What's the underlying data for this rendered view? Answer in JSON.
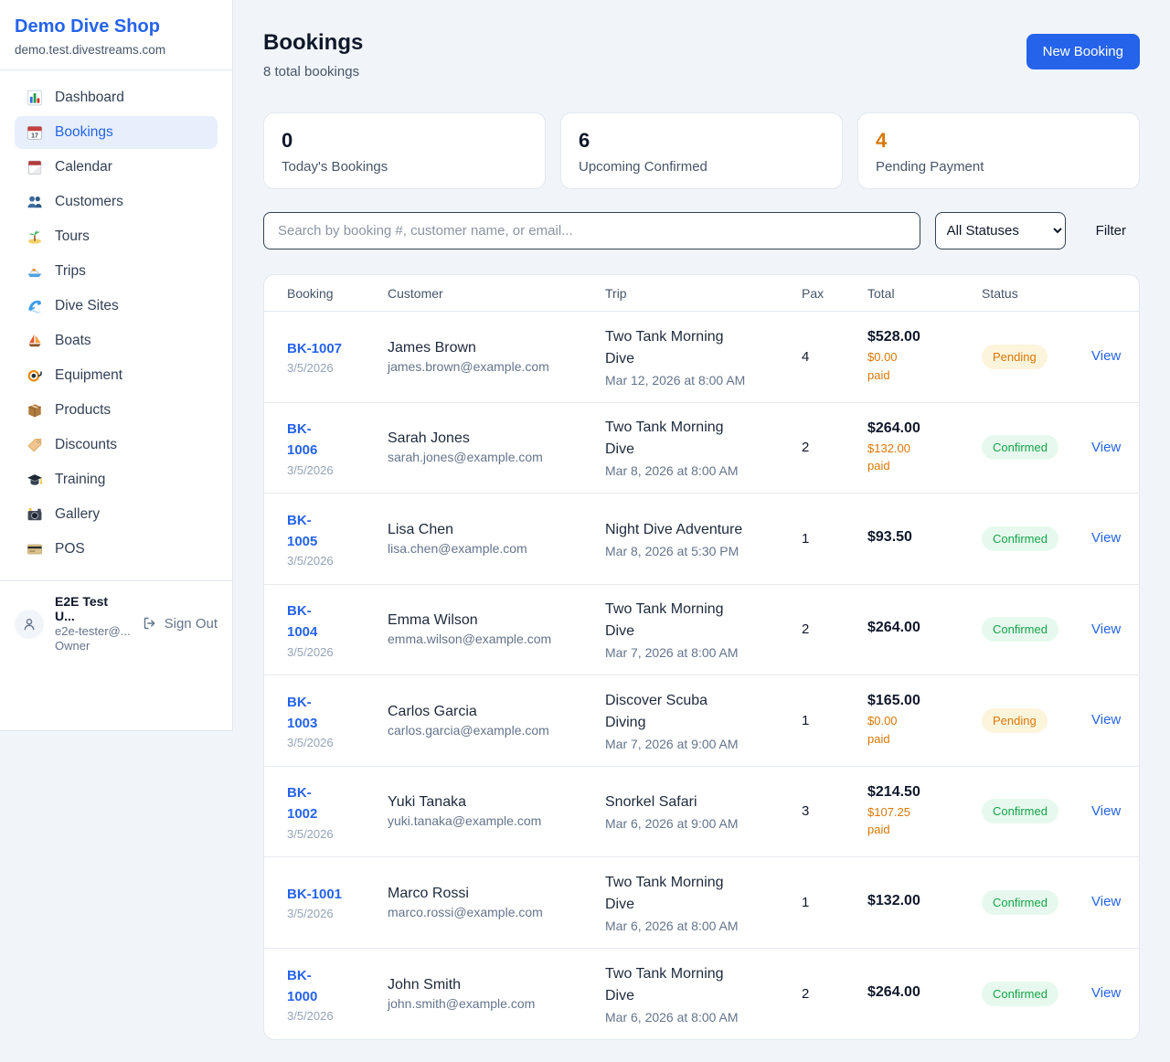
{
  "colors": {
    "accent": "#2563eb",
    "pending_orange": "#d97706",
    "confirmed_green": "#16a34a",
    "pending_badge_bg": "#fdf4dc",
    "confirmed_badge_bg": "#e7f9ee"
  },
  "sidebar": {
    "brand": "Demo Dive Shop",
    "domain": "demo.test.divestreams.com",
    "items": [
      {
        "label": "Dashboard",
        "icon": "dashboard-icon",
        "active": false
      },
      {
        "label": "Bookings",
        "icon": "bookings-icon",
        "active": true
      },
      {
        "label": "Calendar",
        "icon": "calendar-icon",
        "active": false
      },
      {
        "label": "Customers",
        "icon": "customers-icon",
        "active": false
      },
      {
        "label": "Tours",
        "icon": "tours-icon",
        "active": false
      },
      {
        "label": "Trips",
        "icon": "trips-icon",
        "active": false
      },
      {
        "label": "Dive Sites",
        "icon": "dive-sites-icon",
        "active": false
      },
      {
        "label": "Boats",
        "icon": "boats-icon",
        "active": false
      },
      {
        "label": "Equipment",
        "icon": "equipment-icon",
        "active": false
      },
      {
        "label": "Products",
        "icon": "products-icon",
        "active": false
      },
      {
        "label": "Discounts",
        "icon": "discounts-icon",
        "active": false
      },
      {
        "label": "Training",
        "icon": "training-icon",
        "active": false
      },
      {
        "label": "Gallery",
        "icon": "gallery-icon",
        "active": false
      },
      {
        "label": "POS",
        "icon": "pos-icon",
        "active": false
      }
    ],
    "user": {
      "name": "E2E Test U...",
      "email": "e2e-tester@...",
      "role": "Owner",
      "signout_label": "Sign Out"
    }
  },
  "header": {
    "title": "Bookings",
    "subtitle": "8 total bookings",
    "new_booking_label": "New Booking"
  },
  "stats": [
    {
      "value": "0",
      "label": "Today's Bookings",
      "color": "#0f172a"
    },
    {
      "value": "6",
      "label": "Upcoming Confirmed",
      "color": "#0f172a"
    },
    {
      "value": "4",
      "label": "Pending Payment",
      "color": "#d97706"
    }
  ],
  "filters": {
    "search_placeholder": "Search by booking #, customer name, or email...",
    "status_selected": "All Statuses",
    "filter_label": "Filter"
  },
  "table": {
    "columns": [
      "Booking",
      "Customer",
      "Trip",
      "Pax",
      "Total",
      "Status"
    ],
    "view_label": "View",
    "rows": [
      {
        "id": "BK-1007",
        "date": "3/5/2026",
        "customer": "James Brown",
        "email": "james.brown@example.com",
        "trip": "Two Tank Morning\nDive",
        "trip_time": "Mar 12, 2026 at 8:00 AM",
        "pax": "4",
        "total": "$528.00",
        "paid": "$0.00 paid",
        "status": "Pending"
      },
      {
        "id": "BK-\n1006",
        "date": "3/5/2026",
        "customer": "Sarah Jones",
        "email": "sarah.jones@example.com",
        "trip": "Two Tank Morning\nDive",
        "trip_time": "Mar 8, 2026 at 8:00 AM",
        "pax": "2",
        "total": "$264.00",
        "paid": "$132.00\npaid",
        "status": "Confirmed"
      },
      {
        "id": "BK-\n1005",
        "date": "3/5/2026",
        "customer": "Lisa Chen",
        "email": "lisa.chen@example.com",
        "trip": "Night Dive Adventure",
        "trip_time": "Mar 8, 2026 at 5:30 PM",
        "pax": "1",
        "total": "$93.50",
        "paid": null,
        "status": "Confirmed"
      },
      {
        "id": "BK-\n1004",
        "date": "3/5/2026",
        "customer": "Emma Wilson",
        "email": "emma.wilson@example.com",
        "trip": "Two Tank Morning\nDive",
        "trip_time": "Mar 7, 2026 at 8:00 AM",
        "pax": "2",
        "total": "$264.00",
        "paid": null,
        "status": "Confirmed"
      },
      {
        "id": "BK-\n1003",
        "date": "3/5/2026",
        "customer": "Carlos Garcia",
        "email": "carlos.garcia@example.com",
        "trip": "Discover Scuba\nDiving",
        "trip_time": "Mar 7, 2026 at 9:00 AM",
        "pax": "1",
        "total": "$165.00",
        "paid": "$0.00 paid",
        "status": "Pending"
      },
      {
        "id": "BK-\n1002",
        "date": "3/5/2026",
        "customer": "Yuki Tanaka",
        "email": "yuki.tanaka@example.com",
        "trip": "Snorkel Safari",
        "trip_time": "Mar 6, 2026 at 9:00 AM",
        "pax": "3",
        "total": "$214.50",
        "paid": "$107.25 paid",
        "status": "Confirmed"
      },
      {
        "id": "BK-1001",
        "date": "3/5/2026",
        "customer": "Marco Rossi",
        "email": "marco.rossi@example.com",
        "trip": "Two Tank Morning\nDive",
        "trip_time": "Mar 6, 2026 at 8:00 AM",
        "pax": "1",
        "total": "$132.00",
        "paid": null,
        "status": "Confirmed"
      },
      {
        "id": "BK-\n1000",
        "date": "3/5/2026",
        "customer": "John Smith",
        "email": "john.smith@example.com",
        "trip": "Two Tank Morning\nDive",
        "trip_time": "Mar 6, 2026 at 8:00 AM",
        "pax": "2",
        "total": "$264.00",
        "paid": null,
        "status": "Confirmed"
      }
    ]
  }
}
